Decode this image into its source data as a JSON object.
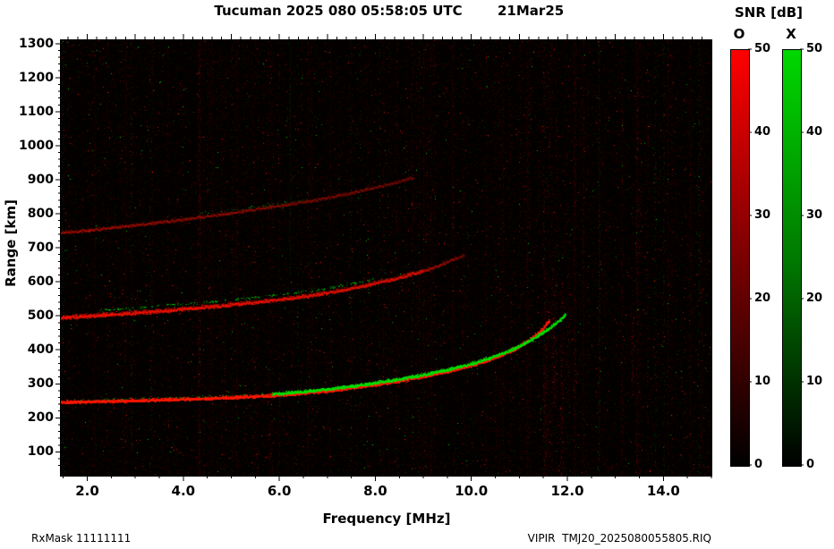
{
  "header": {
    "title_left": "Tucuman 2025 080 05:58:05 UTC",
    "title_right": "21Mar25"
  },
  "footer": {
    "rxmask_label": "RxMask 11111111",
    "file_label": "VIPIR  TMJ20_2025080055805.RIQ"
  },
  "colorbar": {
    "title": "SNR [dB]",
    "o_label": "O",
    "x_label": "X",
    "tick_values": [
      0,
      10,
      20,
      30,
      40,
      50
    ],
    "tick_labels": [
      "0",
      "10",
      "20",
      "30",
      "40",
      "50"
    ],
    "o_top_color": "#ff0000",
    "x_top_color": "#00d800",
    "bottom_color": "#000000"
  },
  "chart_data": {
    "type": "heatmap",
    "title": "Tucuman ionogram, day 080 2025, 05:58:05 UTC",
    "xlabel": "Frequency [MHz]",
    "ylabel": "Range [km]",
    "x_range": [
      1.45,
      15.0
    ],
    "y_range": [
      30,
      1310
    ],
    "x_major_tick_values": [
      2,
      4,
      6,
      8,
      10,
      12,
      14
    ],
    "x_tick_labels": [
      "2.0",
      "4.0",
      "6.0",
      "8.0",
      "10.0",
      "12.0",
      "14.0"
    ],
    "y_major_tick_values": [
      100,
      200,
      300,
      400,
      500,
      600,
      700,
      800,
      900,
      1000,
      1100,
      1200,
      1300
    ],
    "y_tick_labels": [
      "100",
      "200",
      "300",
      "400",
      "500",
      "600",
      "700",
      "800",
      "900",
      "1000",
      "1100",
      "1200",
      "1300"
    ],
    "background": "#030000",
    "snr_scale_db": [
      0,
      50
    ],
    "foF2_MHz_approx": 11.6,
    "fxF2_MHz_approx": 12.0,
    "traces": [
      {
        "name": "1st-hop F-region O-mode",
        "mode": "O",
        "color": "#ff1500",
        "width": 2.4,
        "density": 6,
        "alpha": 0.95,
        "points": [
          [
            1.45,
            247
          ],
          [
            2,
            249
          ],
          [
            2.5,
            250.5
          ],
          [
            3,
            252
          ],
          [
            3.5,
            254
          ],
          [
            4,
            256
          ],
          [
            4.5,
            258.5
          ],
          [
            5,
            261
          ],
          [
            5.5,
            264.5
          ],
          [
            6,
            268
          ],
          [
            6.5,
            274
          ],
          [
            7,
            281
          ],
          [
            7.5,
            289
          ],
          [
            8,
            299
          ],
          [
            8.5,
            310
          ],
          [
            9,
            323
          ],
          [
            9.5,
            338
          ],
          [
            10,
            356
          ],
          [
            10.3,
            369
          ],
          [
            10.6,
            385
          ],
          [
            10.9,
            404
          ],
          [
            11.1,
            420
          ],
          [
            11.3,
            440
          ],
          [
            11.45,
            459
          ],
          [
            11.55,
            476
          ],
          [
            11.62,
            492
          ]
        ]
      },
      {
        "name": "1st-hop F-region X-mode",
        "mode": "X",
        "color": "#00e000",
        "width": 2.2,
        "density": 5,
        "alpha": 0.95,
        "points": [
          [
            5.85,
            271
          ],
          [
            6.2,
            275
          ],
          [
            6.6,
            280
          ],
          [
            7,
            286
          ],
          [
            7.5,
            294
          ],
          [
            8,
            304
          ],
          [
            8.5,
            315
          ],
          [
            9,
            328
          ],
          [
            9.5,
            343
          ],
          [
            10,
            361
          ],
          [
            10.35,
            376
          ],
          [
            10.7,
            394
          ],
          [
            11,
            413
          ],
          [
            11.3,
            436
          ],
          [
            11.6,
            464
          ],
          [
            11.85,
            490
          ],
          [
            11.97,
            507
          ]
        ]
      },
      {
        "name": "1st-hop X-mode low-frequency speckle",
        "mode": "X",
        "color": "#00cc00",
        "width": 1.6,
        "density": 1,
        "alpha": 0.7,
        "dashed": true,
        "points": [
          [
            1.7,
            253
          ],
          [
            2.5,
            256
          ],
          [
            3.5,
            260
          ],
          [
            4.5,
            264.5
          ],
          [
            5.4,
            269
          ],
          [
            5.85,
            271
          ]
        ]
      },
      {
        "name": "2nd-hop O-mode",
        "mode": "O",
        "color": "#ee1000",
        "width": 3.2,
        "density": 5,
        "alpha": 0.85,
        "alpha_end": 0.55,
        "points": [
          [
            1.45,
            496
          ],
          [
            2,
            501
          ],
          [
            2.5,
            505
          ],
          [
            3,
            510
          ],
          [
            3.5,
            515.5
          ],
          [
            4,
            521
          ],
          [
            4.5,
            527.5
          ],
          [
            5,
            534
          ],
          [
            5.5,
            541
          ],
          [
            6,
            549
          ],
          [
            6.5,
            558
          ],
          [
            7,
            569
          ],
          [
            7.5,
            582
          ],
          [
            8,
            597
          ],
          [
            8.5,
            614
          ],
          [
            9,
            634
          ]
        ]
      },
      {
        "name": "2nd-hop O-mode tail",
        "mode": "O",
        "color": "#cc0e00",
        "width": 3,
        "density": 3,
        "alpha": 0.5,
        "alpha_end": 0.28,
        "points": [
          [
            9,
            634
          ],
          [
            9.3,
            649
          ],
          [
            9.6,
            666
          ],
          [
            9.85,
            682
          ]
        ]
      },
      {
        "name": "2nd-hop X-mode speckle",
        "mode": "X",
        "color": "#00cc00",
        "width": 1.8,
        "density": 2,
        "alpha": 0.8,
        "dashed": true,
        "points": [
          [
            2.2,
            516
          ],
          [
            3,
            524
          ],
          [
            4,
            535
          ],
          [
            5,
            548
          ],
          [
            6,
            563
          ],
          [
            6.5,
            571
          ],
          [
            7,
            582
          ],
          [
            7.5,
            595
          ],
          [
            8,
            610
          ]
        ]
      },
      {
        "name": "3rd-hop O-mode",
        "mode": "O",
        "color": "#cc0e00",
        "width": 3,
        "density": 2.5,
        "alpha": 0.45,
        "alpha_end": 0.25,
        "points": [
          [
            1.45,
            746
          ],
          [
            2,
            753
          ],
          [
            3,
            768
          ],
          [
            4,
            785
          ],
          [
            5,
            804
          ],
          [
            6,
            825
          ],
          [
            6.5,
            836
          ],
          [
            7,
            849
          ],
          [
            7.5,
            863
          ],
          [
            8,
            879
          ],
          [
            8.5,
            897
          ],
          [
            8.8,
            909
          ]
        ]
      },
      {
        "name": "3rd-hop X-mode speckle",
        "mode": "X",
        "color": "#00bb00",
        "width": 1.6,
        "density": 1,
        "alpha": 0.55,
        "dashed": true,
        "points": [
          [
            4.3,
            800
          ],
          [
            5,
            812
          ],
          [
            5.5,
            820
          ],
          [
            6,
            830
          ],
          [
            6.6,
            843
          ]
        ]
      }
    ],
    "rfi_lines": [
      {
        "f": 2.15,
        "color": "#ff0000",
        "alpha": 0.1,
        "width": 1,
        "range": [
          30,
          1310
        ]
      },
      {
        "f": 2.8,
        "color": "#ff0000",
        "alpha": 0.09,
        "width": 1,
        "range": [
          30,
          1310
        ]
      },
      {
        "f": 3.35,
        "color": "#ff0000",
        "alpha": 0.08,
        "width": 1,
        "range": [
          30,
          1310
        ]
      },
      {
        "f": 4.33,
        "color": "#ff0000",
        "alpha": 0.2,
        "width": 2,
        "range": [
          30,
          1310
        ]
      },
      {
        "f": 4.6,
        "color": "#ff0000",
        "alpha": 0.09,
        "width": 1,
        "range": [
          30,
          1310
        ]
      },
      {
        "f": 5.1,
        "color": "#ff0000",
        "alpha": 0.09,
        "width": 1,
        "range": [
          30,
          1310
        ]
      },
      {
        "f": 6.22,
        "color": "#00dd00",
        "alpha": 0.1,
        "width": 1,
        "range": [
          620,
          1310
        ]
      },
      {
        "f": 7.05,
        "color": "#ff0000",
        "alpha": 0.09,
        "width": 1,
        "range": [
          30,
          1310
        ]
      },
      {
        "f": 8.15,
        "color": "#ff0000",
        "alpha": 0.08,
        "width": 1,
        "range": [
          30,
          1310
        ]
      },
      {
        "f": 9.0,
        "color": "#ff0000",
        "alpha": 0.11,
        "width": 1,
        "range": [
          30,
          1310
        ]
      },
      {
        "f": 9.6,
        "color": "#ff0000",
        "alpha": 0.12,
        "width": 1,
        "range": [
          300,
          1310
        ]
      },
      {
        "f": 10.3,
        "color": "#ff0000",
        "alpha": 0.1,
        "width": 1,
        "range": [
          30,
          1310
        ]
      },
      {
        "f": 10.65,
        "color": "#ff0000",
        "alpha": 0.1,
        "width": 1,
        "range": [
          30,
          1310
        ]
      },
      {
        "f": 11.15,
        "color": "#ff0000",
        "alpha": 0.11,
        "width": 1,
        "range": [
          30,
          1310
        ]
      },
      {
        "f": 11.55,
        "color": "#ff0000",
        "alpha": 0.22,
        "width": 2,
        "range": [
          30,
          640
        ]
      },
      {
        "f": 11.72,
        "color": "#ff0000",
        "alpha": 0.26,
        "width": 2,
        "range": [
          230,
          600
        ]
      },
      {
        "f": 11.88,
        "color": "#ff0000",
        "alpha": 0.24,
        "width": 2,
        "range": [
          30,
          600
        ]
      },
      {
        "f": 12.02,
        "color": "#ff0000",
        "alpha": 0.2,
        "width": 2,
        "range": [
          230,
          640
        ]
      },
      {
        "f": 12.14,
        "color": "#ff0000",
        "alpha": 0.16,
        "width": 1,
        "range": [
          30,
          1310
        ]
      },
      {
        "f": 12.33,
        "color": "#ff0000",
        "alpha": 0.1,
        "width": 1,
        "range": [
          30,
          1310
        ]
      },
      {
        "f": 12.66,
        "color": "#ff0000",
        "alpha": 0.13,
        "width": 1,
        "range": [
          30,
          1310
        ]
      },
      {
        "f": 13.35,
        "color": "#ff0000",
        "alpha": 0.26,
        "width": 2,
        "range": [
          260,
          540
        ]
      },
      {
        "f": 13.44,
        "color": "#ff0000",
        "alpha": 0.2,
        "width": 1,
        "range": [
          30,
          1310
        ]
      },
      {
        "f": 14.1,
        "color": "#ff0000",
        "alpha": 0.08,
        "width": 1,
        "range": [
          30,
          1310
        ]
      },
      {
        "f": 14.55,
        "color": "#ff0000",
        "alpha": 0.1,
        "width": 1,
        "range": [
          30,
          1310
        ]
      },
      {
        "f": 14.8,
        "color": "#ff0000",
        "alpha": 0.08,
        "width": 1,
        "range": [
          30,
          1310
        ]
      }
    ],
    "noise": {
      "red_dots": 24000,
      "green_dots": 5500,
      "bright_red": 800,
      "bright_green": 280,
      "streak_columns": 120
    }
  }
}
